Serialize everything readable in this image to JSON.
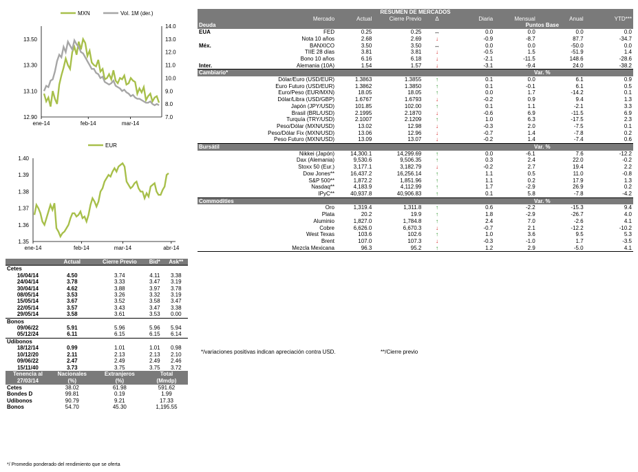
{
  "chart_data": [
    {
      "type": "line",
      "x_ticks": [
        "ene-14",
        "feb-14",
        "mar-14"
      ],
      "ylim": [
        12.9,
        13.6
      ],
      "y_ticks": [
        "12.90",
        "13.10",
        "13.30",
        "13.50"
      ],
      "y2lim": [
        7.0,
        14.0
      ],
      "y2_ticks": [
        "7.0",
        "8.0",
        "9.0",
        "10.0",
        "11.0",
        "12.0",
        "13.0",
        "14.0"
      ],
      "legend_position": "top",
      "series": [
        {
          "name": "MXN",
          "axis": "left",
          "color": "#a7bf4a",
          "values": [
            13.08,
            13.02,
            13.05,
            12.98,
            13.1,
            13.04,
            13.0,
            13.15,
            13.22,
            13.28,
            13.35,
            13.3,
            13.27,
            13.4,
            13.44,
            13.38,
            13.48,
            13.42,
            13.5,
            13.47,
            13.37,
            13.41,
            13.32,
            13.3,
            13.29,
            13.34,
            13.25,
            13.27,
            13.19,
            13.2,
            13.23,
            13.19,
            13.26,
            13.18,
            13.16,
            13.2,
            13.19,
            13.22,
            13.15,
            13.16,
            13.2,
            13.18,
            13.17,
            13.08,
            13.12,
            13.09,
            13.13,
            13.03,
            13.06,
            13.08,
            13.02,
            13.05,
            13.06,
            13.01
          ]
        },
        {
          "name": "Vol. 1M (der.)",
          "axis": "right",
          "color": "#a6a6a6",
          "values": [
            9.0,
            9.4,
            9.3,
            9.8,
            9.9,
            10.5,
            11.3,
            11.8,
            11.6,
            12.4,
            12.0,
            12.8,
            12.5,
            12.2,
            12.9,
            12.6,
            12.4,
            12.0,
            11.9,
            11.6,
            11.3,
            11.0,
            10.7,
            10.7,
            10.4,
            10.3,
            10.0,
            10.1,
            9.7,
            9.6,
            9.5,
            9.6,
            9.8,
            9.4,
            9.3,
            9.2,
            9.0,
            9.1,
            8.9,
            8.8,
            8.6,
            8.7,
            8.5,
            8.4,
            8.4,
            8.3,
            8.2,
            8.1,
            8.1,
            8.2,
            8.0,
            7.9,
            8.0,
            7.9
          ]
        }
      ]
    },
    {
      "type": "line",
      "x_ticks": [
        "ene-14",
        "feb-14",
        "mar-14",
        "abr-14"
      ],
      "ylim": [
        1.35,
        1.4
      ],
      "y_ticks": [
        "1.35",
        "1.36",
        "1.37",
        "1.38",
        "1.39",
        "1.40"
      ],
      "legend_position": "top",
      "series": [
        {
          "name": "EUR",
          "color": "#a7bf4a",
          "values": [
            1.366,
            1.372,
            1.37,
            1.367,
            1.362,
            1.36,
            1.364,
            1.368,
            1.372,
            1.369,
            1.373,
            1.358,
            1.356,
            1.353,
            1.355,
            1.356,
            1.358,
            1.36,
            1.364,
            1.367,
            1.367,
            1.365,
            1.366,
            1.368,
            1.364,
            1.365,
            1.362,
            1.366,
            1.372,
            1.376,
            1.374,
            1.371,
            1.374,
            1.38,
            1.382,
            1.386,
            1.388,
            1.39,
            1.389,
            1.392,
            1.394,
            1.392,
            1.395,
            1.396,
            1.397,
            1.395,
            1.386,
            1.384,
            1.382,
            1.383,
            1.385,
            1.386,
            1.382,
            1.38,
            1.38,
            1.376,
            1.379,
            1.377,
            1.383,
            1.384,
            1.385,
            1.38,
            1.378,
            1.378,
            1.381,
            1.383,
            1.39,
            1.391
          ]
        }
      ]
    }
  ],
  "left": {
    "header": {
      "actual": "Actual",
      "cierre": "Cierre Previo",
      "bid": "Bid*",
      "ask": "Ask**"
    },
    "groups": [
      {
        "name": "Cetes",
        "rows": [
          {
            "n": "16/04/14",
            "a": "4.50",
            "c": "3.74",
            "b": "4.11",
            "k": "3.38"
          },
          {
            "n": "24/04/14",
            "a": "3.78",
            "c": "3.33",
            "b": "3.47",
            "k": "3.19"
          },
          {
            "n": "30/04/14",
            "a": "4.62",
            "c": "3.88",
            "b": "3.97",
            "k": "3.78"
          },
          {
            "n": "08/05/14",
            "a": "3.53",
            "c": "3.26",
            "b": "3.32",
            "k": "3.19"
          },
          {
            "n": "15/05/14",
            "a": "3.67",
            "c": "3.52",
            "b": "3.58",
            "k": "3.47"
          },
          {
            "n": "22/05/14",
            "a": "3.57",
            "c": "3.43",
            "b": "3.47",
            "k": "3.38"
          },
          {
            "n": "29/05/14",
            "a": "3.58",
            "c": "3.61",
            "b": "3.53",
            "k": "0.00"
          }
        ]
      },
      {
        "name": "Bonos",
        "rows": [
          {
            "n": "09/06/22",
            "a": "5.91",
            "c": "5.96",
            "b": "5.96",
            "k": "5.94"
          },
          {
            "n": "05/12/24",
            "a": "6.11",
            "c": "6.15",
            "b": "6.15",
            "k": "6.14"
          }
        ]
      },
      {
        "name": "Udibonos",
        "rows": [
          {
            "n": "18/12/14",
            "a": "0.99",
            "c": "1.01",
            "b": "1.01",
            "k": "0.98"
          },
          {
            "n": "10/12/20",
            "a": "2.11",
            "c": "2.13",
            "b": "2.13",
            "k": "2.10"
          },
          {
            "n": "09/06/22",
            "a": "2.47",
            "c": "2.49",
            "b": "2.49",
            "k": "2.46"
          },
          {
            "n": "15/11/40",
            "a": "3.73",
            "c": "3.75",
            "b": "3.75",
            "k": "3.72"
          }
        ]
      }
    ],
    "tenencia": {
      "h1": "Tenencia al",
      "h1b": "27/03/14",
      "h2": "Nacionales",
      "h2b": "(%)",
      "h3": "Extranjeros",
      "h3b": "(%)",
      "h4": "Total",
      "h4b": "(Mmdp)",
      "rows": [
        {
          "n": "Cetes",
          "a": "38.02",
          "b": "61.98",
          "c": "591.62"
        },
        {
          "n": "Bondes D",
          "a": "99.81",
          "b": "0.19",
          "c": "1.99"
        },
        {
          "n": "Udibonos",
          "a": "90.79",
          "b": "9.21",
          "c": "17.33"
        },
        {
          "n": "Bonos",
          "a": "54.70",
          "b": "45.30",
          "c": "1,195.55"
        }
      ]
    },
    "footnote": "*/ Promedio ponderado del rendimiento que se oferta"
  },
  "right": {
    "title": "RESUMEN DE MERCADOS",
    "cols": {
      "mercado": "Mercado",
      "actual": "Actual",
      "cierre": "Cierre Previo",
      "delta": "Δ",
      "diaria": "Diaria",
      "mensual": "Mensual",
      "anual": "Anual",
      "ytd": "YTD***"
    },
    "sections": [
      {
        "name": "Deuda",
        "unit": "Puntos Base",
        "rows": [
          {
            "g": "EUA",
            "m": "FED",
            "a": "0.25",
            "c": "0.25",
            "t": "eq",
            "d": "0.0",
            "me": "0.0",
            "an": "0.0",
            "y": "0.0"
          },
          {
            "g": "",
            "m": "Nota 10 años",
            "a": "2.68",
            "c": "2.69",
            "t": "dn",
            "d": "-0.9",
            "me": "-8.7",
            "an": "87.7",
            "y": "-34.7"
          },
          {
            "g": "Méx.",
            "m": "BANXICO",
            "a": "3.50",
            "c": "3.50",
            "t": "eq",
            "d": "0.0",
            "me": "0.0",
            "an": "-50.0",
            "y": "0.0"
          },
          {
            "g": "",
            "m": "TIIE 28 días",
            "a": "3.81",
            "c": "3.81",
            "t": "dn",
            "d": "-0.5",
            "me": "1.5",
            "an": "-51.9",
            "y": "1.4"
          },
          {
            "g": "",
            "m": "Bono 10 años",
            "a": "6.16",
            "c": "6.18",
            "t": "dn",
            "d": "-2.1",
            "me": "-11.5",
            "an": "148.6",
            "y": "-28.6"
          },
          {
            "g": "Inter.",
            "m": "Alemania (10A)",
            "a": "1.54",
            "c": "1.57",
            "t": "dn",
            "d": "-3.1",
            "me": "-9.4",
            "an": "24.0",
            "y": "-38.2"
          }
        ]
      },
      {
        "name": "Cambiario*",
        "unit": "Var. %",
        "rows": [
          {
            "g": "",
            "m": "Dólar/Euro (USD/EUR)",
            "a": "1.3863",
            "c": "1.3855",
            "t": "upg",
            "d": "0.1",
            "me": "0.0",
            "an": "6.1",
            "y": "0.9"
          },
          {
            "g": "",
            "m": "Euro Futuro (USD/EUR)",
            "a": "1.3862",
            "c": "1.3850",
            "t": "upg",
            "d": "0.1",
            "me": "-0.1",
            "an": "6.1",
            "y": "0.5"
          },
          {
            "g": "",
            "m": "Euro/Peso (EUR/MXN)",
            "a": "18.05",
            "c": "18.05",
            "t": "up",
            "d": "0.0",
            "me": "1.7",
            "an": "-14.2",
            "y": "0.1"
          },
          {
            "g": "",
            "m": "Dólar/Libra (USD/GBP)",
            "a": "1.6767",
            "c": "1.6793",
            "t": "dn",
            "d": "-0.2",
            "me": "0.9",
            "an": "9.4",
            "y": "1.3"
          },
          {
            "g": "",
            "m": "Japón (JPY/USD)",
            "a": "101.85",
            "c": "102.00",
            "t": "up",
            "d": "0.1",
            "me": "1.1",
            "an": "-2.1",
            "y": "3.3"
          },
          {
            "g": "",
            "m": "Brasil (BRL/USD)",
            "a": "2.1995",
            "c": "2.1870",
            "t": "dn",
            "d": "-0.6",
            "me": "6.9",
            "an": "-11.5",
            "y": "6.9"
          },
          {
            "g": "",
            "m": "Turquía (TRY/USD)",
            "a": "2.1007",
            "c": "2.1209",
            "t": "upg",
            "d": "1.0",
            "me": "6.3",
            "an": "-17.5",
            "y": "2.3"
          },
          {
            "g": "",
            "m": "Peso/Dólar (MXN/USD)",
            "a": "13.02",
            "c": "12.98",
            "t": "dn",
            "d": "-0.3",
            "me": "2.0",
            "an": "-7.5",
            "y": "0.1"
          },
          {
            "g": "",
            "m": "Peso/Dólar Fix (MXN/USD)",
            "a": "13.06",
            "c": "12.96",
            "t": "dn",
            "d": "-0.7",
            "me": "1.4",
            "an": "-7.8",
            "y": "0.2"
          },
          {
            "g": "",
            "m": "Peso Futuro (MXN/USD)",
            "a": "13.09",
            "c": "13.07",
            "t": "dn",
            "d": "-0.2",
            "me": "1.4",
            "an": "-7.4",
            "y": "0.6"
          }
        ]
      },
      {
        "name": "Bursátil",
        "unit": "Var. %",
        "rows": [
          {
            "g": "",
            "m": "Nikkei (Japón)",
            "a": "14,300.1",
            "c": "14,299.69",
            "t": "upg",
            "d": "0.0",
            "me": "-6.1",
            "an": "7.6",
            "y": "-12.2"
          },
          {
            "g": "",
            "m": "Dax (Alemania)",
            "a": "9,530.6",
            "c": "9,506.35",
            "t": "upg",
            "d": "0.3",
            "me": "2.4",
            "an": "22.0",
            "y": "-0.2"
          },
          {
            "g": "",
            "m": "Stoxx 50 (Eur.)",
            "a": "3,177.1",
            "c": "3,182.79",
            "t": "dn",
            "d": "-0.2",
            "me": "2.7",
            "an": "19.4",
            "y": "2.2"
          },
          {
            "g": "",
            "m": "Dow Jones**",
            "a": "16,437.2",
            "c": "16,256.14",
            "t": "upg",
            "d": "1.1",
            "me": "0.5",
            "an": "11.0",
            "y": "-0.8"
          },
          {
            "g": "",
            "m": "S&P 500**",
            "a": "1,872.2",
            "c": "1,851.96",
            "t": "upg",
            "d": "1.1",
            "me": "0.2",
            "an": "17.9",
            "y": "1.3"
          },
          {
            "g": "",
            "m": "Nasdaq**",
            "a": "4,183.9",
            "c": "4,112.99",
            "t": "upg",
            "d": "1.7",
            "me": "-2.9",
            "an": "26.9",
            "y": "0.2"
          },
          {
            "g": "",
            "m": "IPyC**",
            "a": "40,937.8",
            "c": "40,906.83",
            "t": "upg",
            "d": "0.1",
            "me": "5.8",
            "an": "-7.8",
            "y": "-4.2"
          }
        ]
      },
      {
        "name": "Commodities",
        "unit": "Var. %",
        "rows": [
          {
            "g": "",
            "m": "Oro",
            "a": "1,319.4",
            "c": "1,311.8",
            "t": "upg",
            "d": "0.6",
            "me": "-2.2",
            "an": "-15.3",
            "y": "9.4"
          },
          {
            "g": "",
            "m": "Plata",
            "a": "20.2",
            "c": "19.9",
            "t": "upg",
            "d": "1.8",
            "me": "-2.9",
            "an": "-26.7",
            "y": "4.0"
          },
          {
            "g": "",
            "m": "Aluminio",
            "a": "1,827.0",
            "c": "1,784.8",
            "t": "upg",
            "d": "2.4",
            "me": "7.0",
            "an": "-2.6",
            "y": "4.1"
          },
          {
            "g": "",
            "m": "Cobre",
            "a": "6,626.0",
            "c": "6,670.3",
            "t": "dn",
            "d": "-0.7",
            "me": "2.1",
            "an": "-12.2",
            "y": "-10.2"
          },
          {
            "g": "",
            "m": "West Texas",
            "a": "103.6",
            "c": "102.6",
            "t": "upg",
            "d": "1.0",
            "me": "3.6",
            "an": "9.5",
            "y": "5.3"
          },
          {
            "g": "",
            "m": "Brent",
            "a": "107.0",
            "c": "107.3",
            "t": "dn",
            "d": "-0.3",
            "me": "-1.0",
            "an": "1.7",
            "y": "-3.5"
          },
          {
            "g": "",
            "m": "Mezcla Mexicana",
            "a": "96.3",
            "c": "95.2",
            "t": "upg",
            "d": "1.2",
            "me": "2.9",
            "an": "-5.0",
            "y": "4.1"
          }
        ]
      }
    ],
    "footnote1": "*/variaciones positivas indican apreciación contra USD.",
    "footnote2": "**/Cierre previo"
  }
}
